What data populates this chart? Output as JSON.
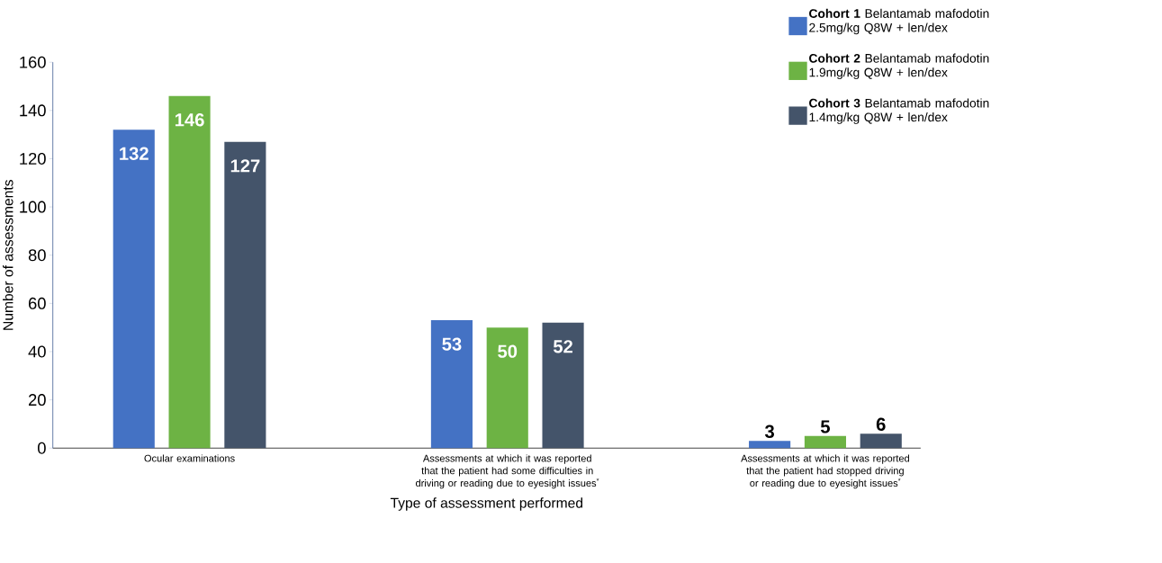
{
  "chart_data": {
    "type": "bar",
    "xlabel": "Type of assessment performed",
    "ylabel": "Number of assessments",
    "categories": [
      "Ocular examinations",
      "Assessments at which it was reported that the patient had some difficulties in driving or reading due to eyesight issues$^{*}$",
      "Assessments at which it was reported that the patient had stopped driving or reading due to eyesight issues$^{*}$"
    ],
    "series": [
      {
        "name": "**Cohort 1** Belantamab mafodotin 2.5mg/kg Q8W + len/dex",
        "color": "#4472c4",
        "values": [
          132,
          53,
          3
        ]
      },
      {
        "name": "**Cohort 2** Belantamab mafodotin 1.9mg/kg Q8W + len/dex",
        "color": "#6db344",
        "values": [
          146,
          50,
          5
        ]
      },
      {
        "name": "**Cohort 3** Belantamab mafodotin 1.4mg/kg Q8W + len/dex",
        "color": "#44546a",
        "values": [
          127,
          52,
          6
        ]
      }
    ],
    "ylim": [
      0,
      160
    ],
    "yticks": [
      0,
      20,
      40,
      60,
      80,
      100,
      120,
      140,
      160
    ],
    "data_labels": true,
    "legend": "top right",
    "grid": false
  }
}
